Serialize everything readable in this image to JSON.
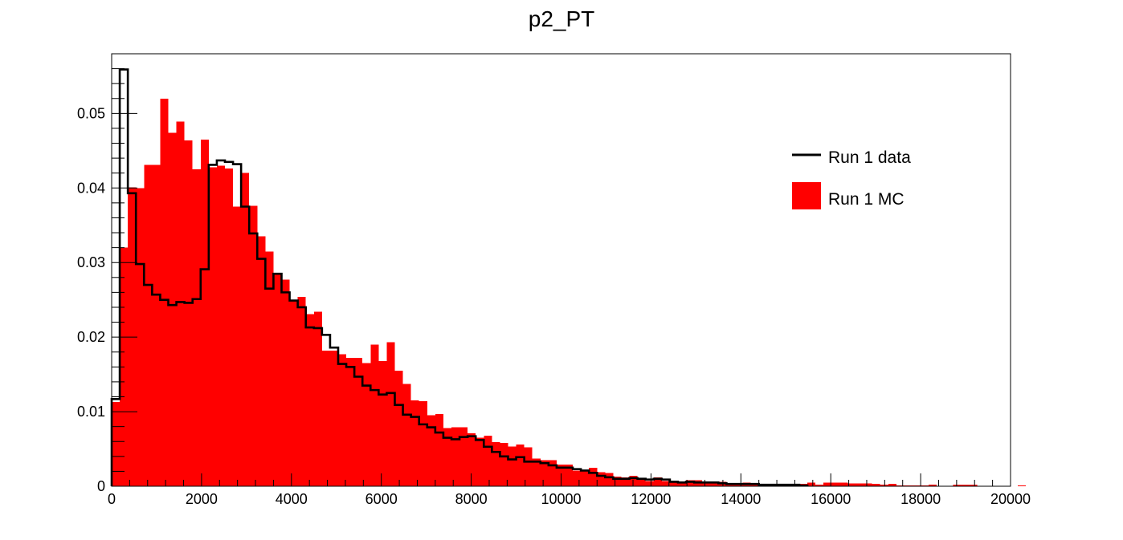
{
  "chart_data": {
    "type": "histogram",
    "title": "p2_PT",
    "xlabel": "",
    "ylabel": "",
    "xlim": [
      0,
      20000
    ],
    "ylim": [
      0,
      0.058
    ],
    "x_ticks": [
      0,
      2000,
      4000,
      6000,
      8000,
      10000,
      12000,
      14000,
      16000,
      18000,
      20000
    ],
    "y_ticks": [
      0,
      0.01,
      0.02,
      0.03,
      0.04,
      0.05
    ],
    "y_tick_labels": [
      "0",
      "0.01",
      "0.02",
      "0.03",
      "0.04",
      "0.05"
    ],
    "bin_width": 180,
    "legend_placement": "top-right",
    "series": [
      {
        "name": "Run 1 MC",
        "style": "filled",
        "color": "#ff0000",
        "values": [
          0.0113,
          0.032,
          0.0401,
          0.04,
          0.0431,
          0.0431,
          0.052,
          0.0474,
          0.0489,
          0.0464,
          0.0425,
          0.0465,
          0.0428,
          0.043,
          0.0426,
          0.0375,
          0.042,
          0.0376,
          0.0335,
          0.0315,
          0.0285,
          0.0277,
          0.025,
          0.0254,
          0.0231,
          0.0234,
          0.0182,
          0.0182,
          0.0177,
          0.0172,
          0.0172,
          0.0165,
          0.019,
          0.0168,
          0.0193,
          0.0155,
          0.0137,
          0.0115,
          0.0114,
          0.0095,
          0.0097,
          0.0078,
          0.0079,
          0.0079,
          0.0071,
          0.0065,
          0.0068,
          0.0059,
          0.0058,
          0.0053,
          0.0056,
          0.0052,
          0.0037,
          0.0035,
          0.0035,
          0.0029,
          0.0029,
          0.0021,
          0.0021,
          0.0025,
          0.0019,
          0.0018,
          0.0013,
          0.0012,
          0.0014,
          0.0009,
          0.0007,
          0.0012,
          0.0007,
          0.0007,
          0.0006,
          0.0008,
          0.0008,
          0.0006,
          0.0005,
          0.0006,
          0.0003,
          0.0004,
          0.0005,
          0.0004,
          0.0003,
          0.0003,
          0.0002,
          0.0002,
          0.0001,
          0.0003,
          0.0005,
          0.0002,
          0.0005,
          0.0005,
          0.0005,
          0.0004,
          0.0004,
          0.0004,
          0.0003,
          0.0002,
          0.0003,
          0.0001,
          0.0001,
          0.0001,
          0.0001,
          0.0002,
          0.0,
          0.0,
          0.0,
          0.0001,
          0.0,
          0.0,
          0.0,
          0.0,
          0.0,
          0.0,
          0.0001,
          0.0,
          0.0,
          0.0,
          0.0,
          0.0,
          0.0,
          0.0,
          0.0,
          0.0,
          0.0,
          0.0,
          0.0,
          0.0,
          0.0,
          0.0,
          0.0,
          0.0,
          0.0,
          0.0,
          0.0,
          0.0,
          0.0,
          0.0,
          0.0,
          0.0,
          0.0,
          0.0,
          0.0,
          0.0,
          0.0,
          0.0,
          0.0,
          0.0,
          0.0,
          0.0,
          0.0,
          0.0,
          0.0,
          0.0,
          0.0,
          0.0,
          0.0,
          0.0,
          0.0,
          0.0,
          0.0,
          0.0,
          0.0,
          0.0,
          0.0,
          0.0,
          0.0,
          0.0,
          0.0,
          0.0,
          0.0,
          0.0,
          0.0,
          0.0,
          0.0,
          0.0,
          0.0,
          0.0,
          0.0,
          0.0,
          0.0,
          0.0
        ],
        "sparse_extra": [
          [
            16200,
            0.0002
          ],
          [
            18720,
            0.0002
          ],
          [
            18900,
            0.0002
          ],
          [
            19080,
            0.0002
          ]
        ]
      },
      {
        "name": "Run 1 data",
        "style": "step-line",
        "color": "#000000",
        "values": [
          0.0117,
          0.0559,
          0.0393,
          0.0298,
          0.027,
          0.0257,
          0.025,
          0.0243,
          0.0247,
          0.0246,
          0.0251,
          0.0291,
          0.0431,
          0.0437,
          0.0435,
          0.0432,
          0.0375,
          0.0339,
          0.0305,
          0.0265,
          0.0285,
          0.026,
          0.0249,
          0.024,
          0.0213,
          0.0212,
          0.0203,
          0.0186,
          0.0164,
          0.016,
          0.0147,
          0.0135,
          0.0129,
          0.0123,
          0.0125,
          0.0109,
          0.0096,
          0.0093,
          0.0083,
          0.0079,
          0.0072,
          0.0065,
          0.0063,
          0.0066,
          0.0067,
          0.0062,
          0.0053,
          0.0046,
          0.004,
          0.0036,
          0.0039,
          0.0033,
          0.0033,
          0.0031,
          0.0028,
          0.0025,
          0.0025,
          0.0023,
          0.0021,
          0.0018,
          0.0014,
          0.0012,
          0.001,
          0.001,
          0.0011,
          0.001,
          0.0009,
          0.001,
          0.0009,
          0.0006,
          0.0005,
          0.0006,
          0.0005,
          0.0005,
          0.0005,
          0.0004,
          0.0003,
          0.0003,
          0.0003,
          0.0003,
          0.0002,
          0.0002,
          0.0002,
          0.0002,
          0.0002,
          0.0001,
          0.0001,
          0.0001,
          0.0001,
          0.0001,
          0.0001,
          0.0001,
          0.0001,
          0.0001,
          0.0001,
          0.0001,
          0.0001,
          0.0001,
          0.0001,
          0.0001,
          0.0001,
          0.0001,
          0.0001,
          0.0001,
          0.0001,
          0.0,
          0.0,
          0.0,
          0.0,
          0.0,
          0.0,
          0.0,
          0.0,
          0.0,
          0.0,
          0.0,
          0.0,
          0.0,
          0.0,
          0.0,
          0.0,
          0.0,
          0.0,
          0.0,
          0.0,
          0.0,
          0.0,
          0.0,
          0.0,
          0.0,
          0.0,
          0.0,
          0.0,
          0.0,
          0.0,
          0.0,
          0.0,
          0.0,
          0.0,
          0.0,
          0.0,
          0.0,
          0.0,
          0.0,
          0.0,
          0.0,
          0.0,
          0.0,
          0.0,
          0.0,
          0.0,
          0.0,
          0.0,
          0.0,
          0.0,
          0.0,
          0.0,
          0.0,
          0.0,
          0.0,
          0.0,
          0.0,
          0.0,
          0.0,
          0.0,
          0.0,
          0.0,
          0.0,
          0.0,
          0.0,
          0.0,
          0.0,
          0.0,
          0.0,
          0.0,
          0.0,
          0.0,
          0.0,
          0.0,
          0.0,
          0.0,
          0.0,
          0.0,
          0.0,
          0.0,
          0.0
        ],
        "line_end_x": 15480
      }
    ]
  }
}
